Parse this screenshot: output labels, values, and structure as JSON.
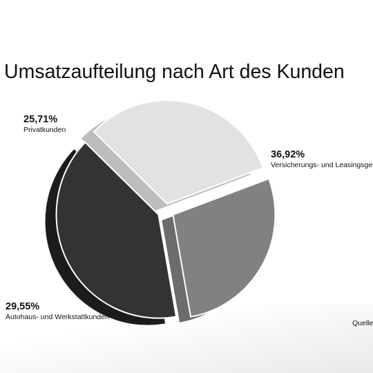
{
  "chart_data": {
    "type": "pie",
    "title": "Umsatzaufteilung nach Art des Kunden",
    "slices": [
      {
        "label": "Versicherungs- und Leasingsgesel",
        "value": 36.92,
        "value_label": "36,92%",
        "color": "#333333"
      },
      {
        "label": "Autohaus- und Werkstattkunden",
        "value": 29.55,
        "value_label": "29,55%",
        "color": "#e1e3e2"
      },
      {
        "label": "Privatkunden",
        "value": 25.71,
        "value_label": "25,71%",
        "color": "#818181"
      }
    ]
  },
  "footer": {
    "source_label": "Quelle"
  }
}
